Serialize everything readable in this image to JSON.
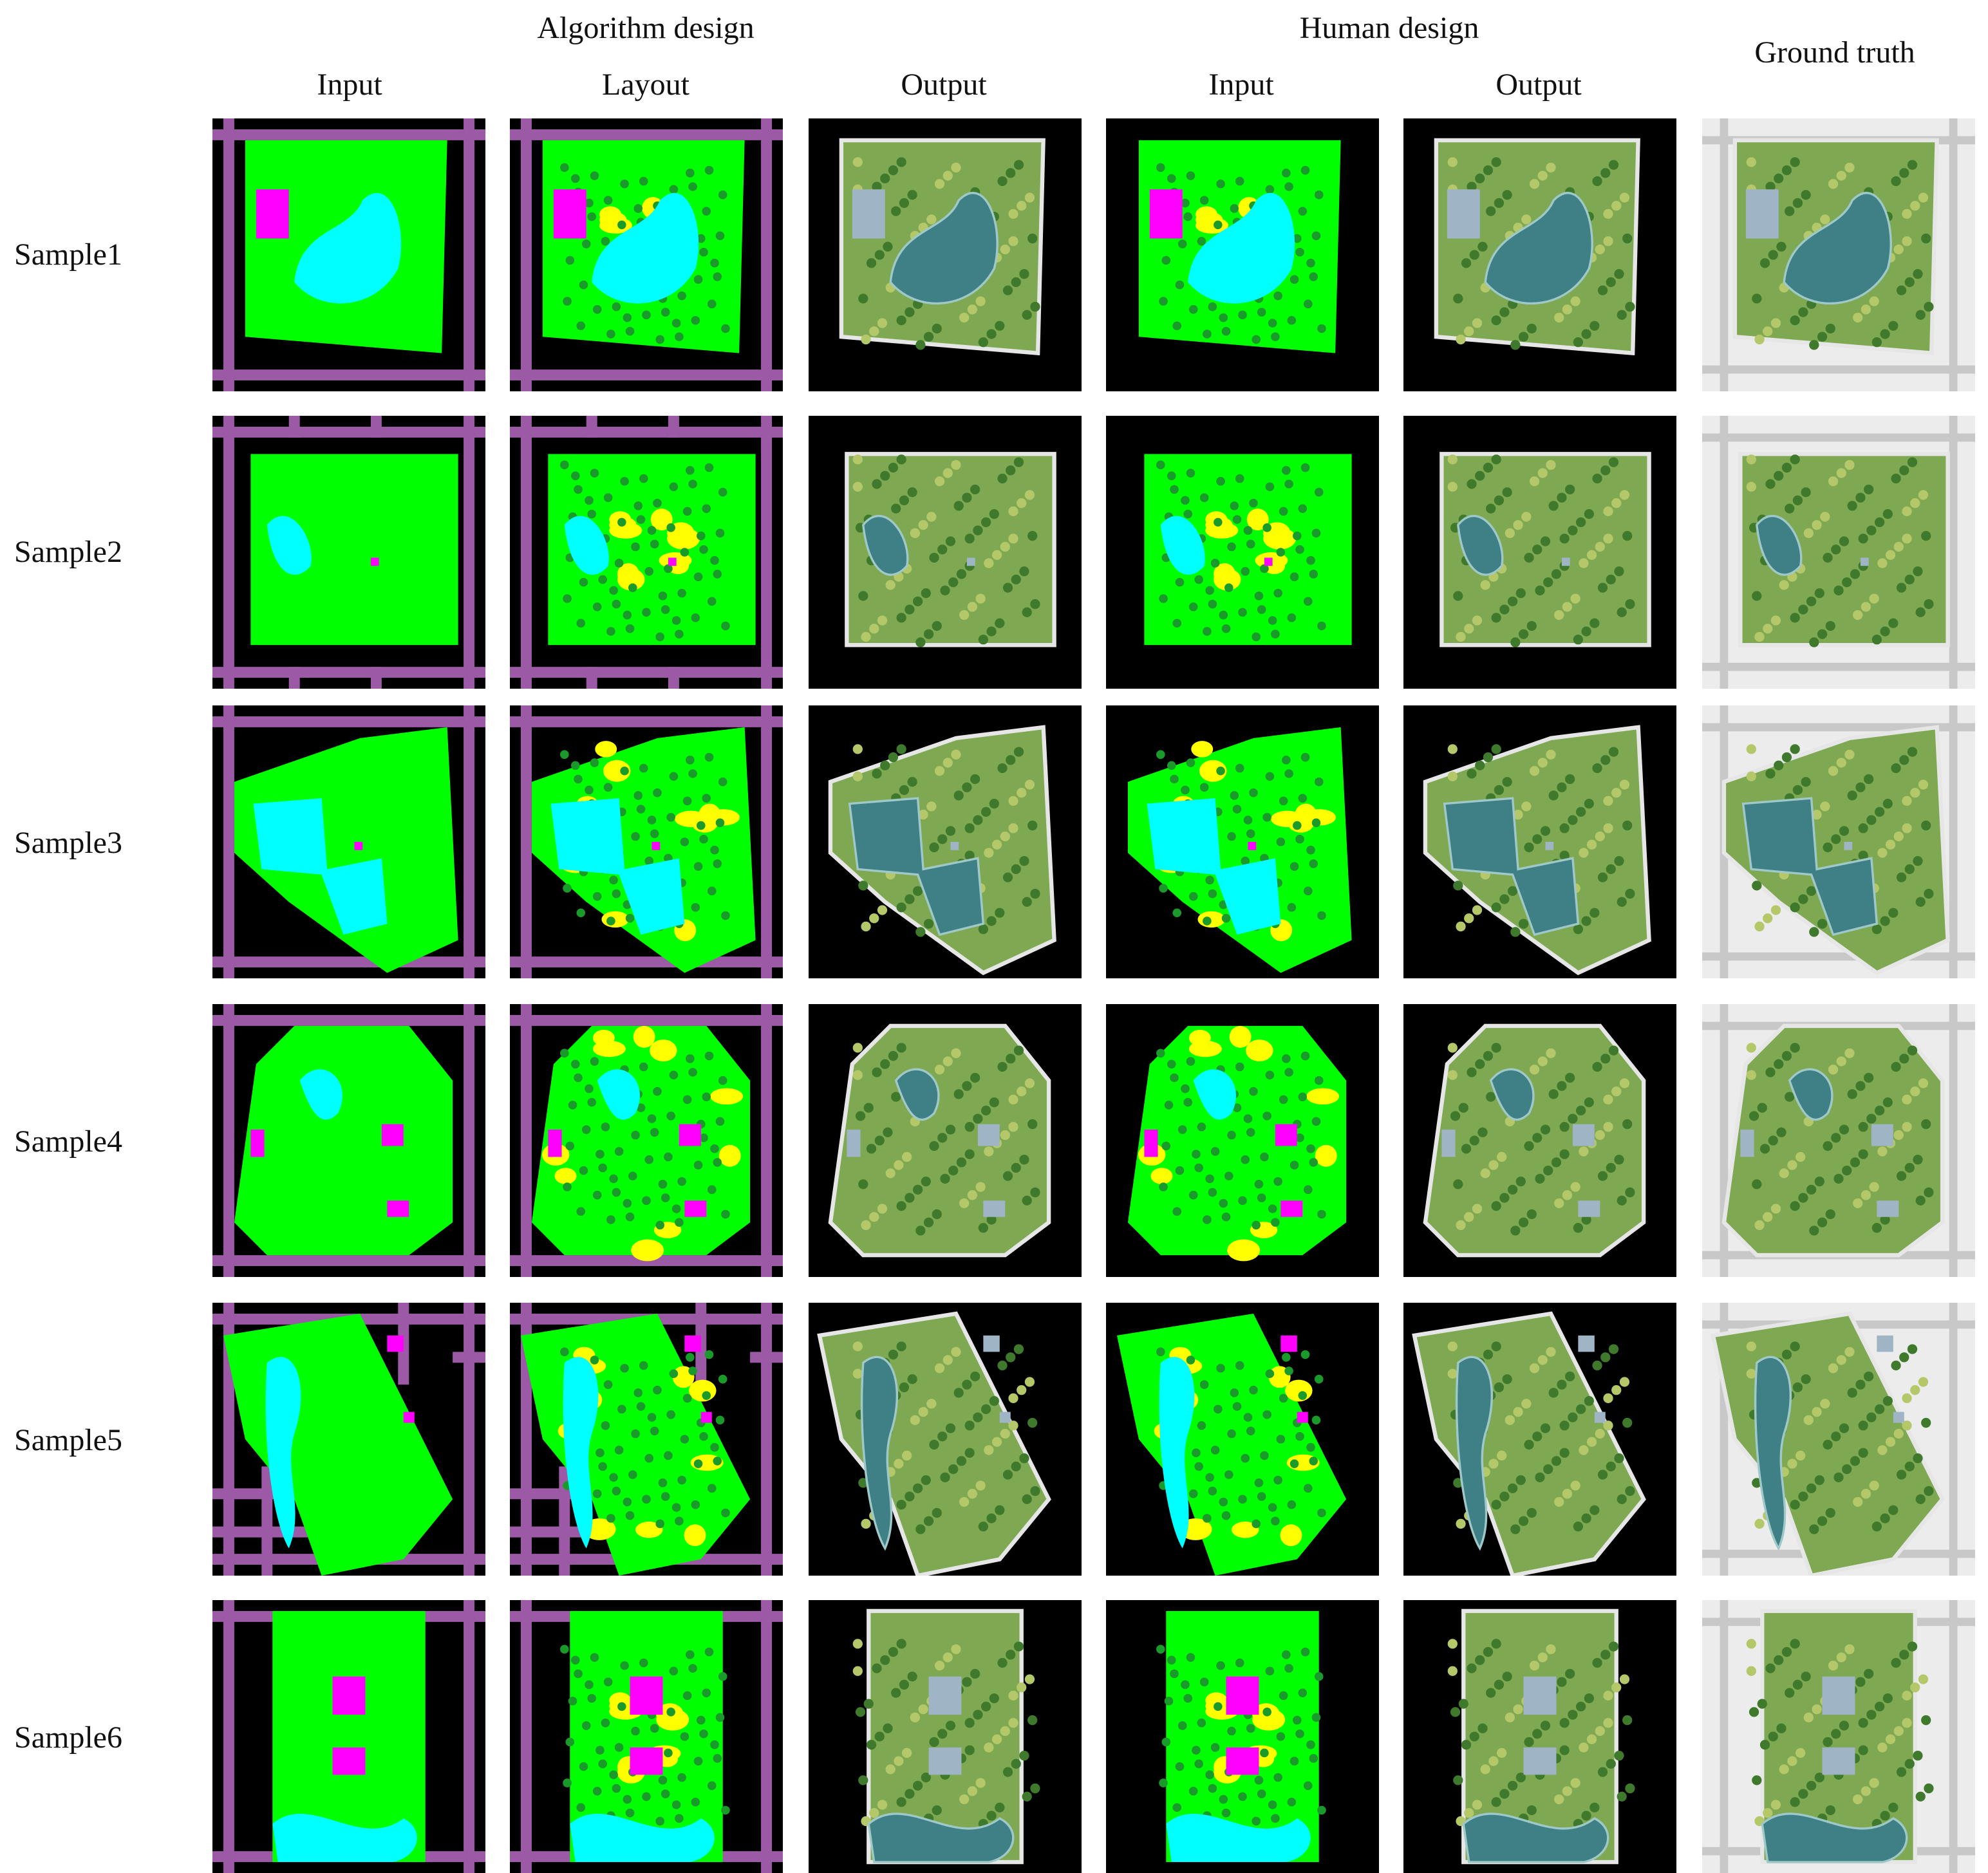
{
  "header": {
    "group_algorithm": "Algorithm design",
    "group_human": "Human design",
    "ground_truth": "Ground truth",
    "col_input_1": "Input",
    "col_layout": "Layout",
    "col_output_1": "Output",
    "col_input_2": "Input",
    "col_output_2": "Output"
  },
  "rows": [
    {
      "label": "Sample1"
    },
    {
      "label": "Sample2"
    },
    {
      "label": "Sample3"
    },
    {
      "label": "Sample4"
    },
    {
      "label": "Sample5"
    },
    {
      "label": "Sample6"
    }
  ],
  "colors": {
    "road": "#9b59a6",
    "green_space": "#00ff00",
    "water": "#00ffff",
    "building": "#ff00ff",
    "plaza": "#ffff00",
    "tree": "#1a9a2a",
    "background": "#000000"
  }
}
